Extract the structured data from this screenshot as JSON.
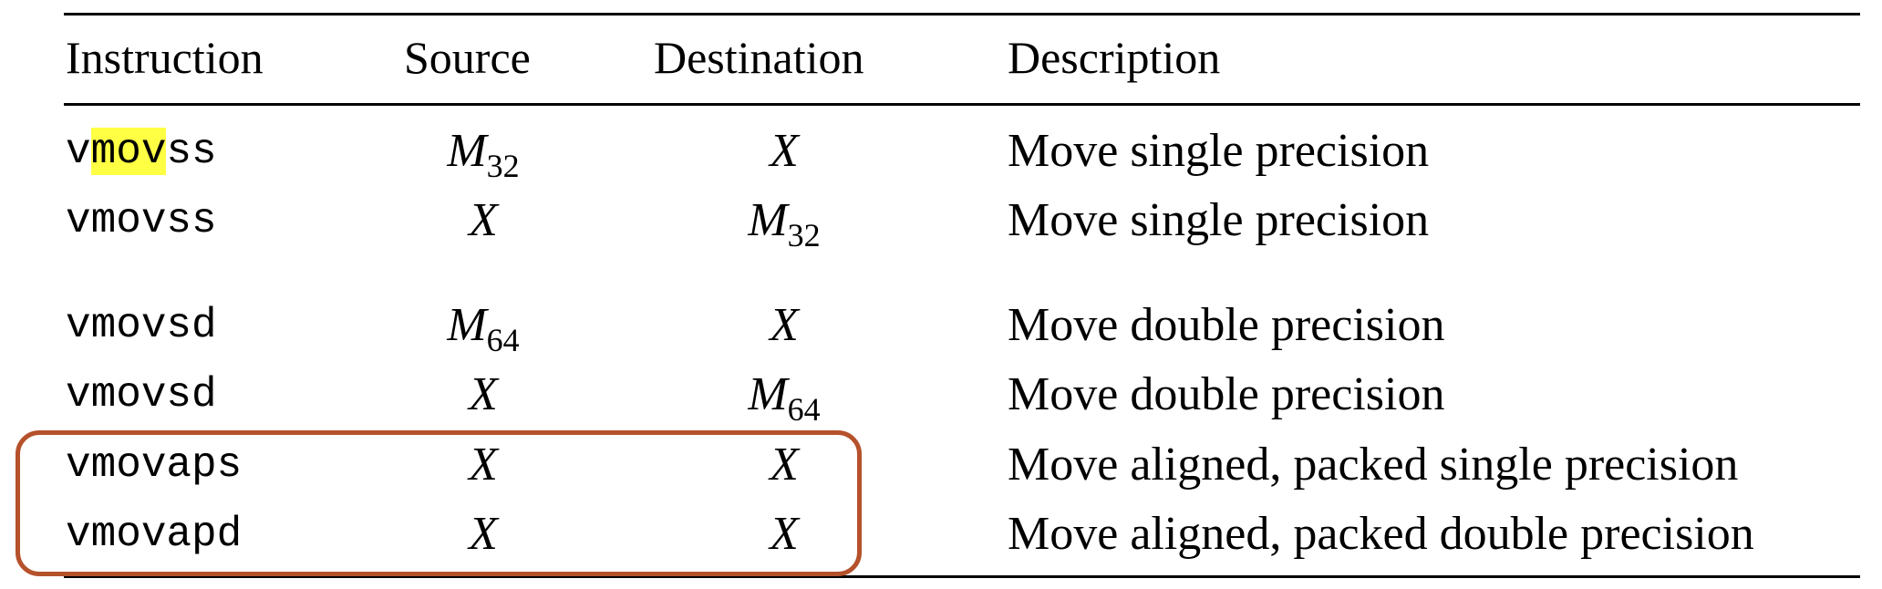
{
  "headers": {
    "instruction": "Instruction",
    "source": "Source",
    "destination": "Destination",
    "description": "Description"
  },
  "rows": [
    {
      "instr_pre": "v",
      "instr_hl": "mov",
      "instr_post": "ss",
      "src_base": "M",
      "src_sub": "32",
      "dst_base": "X",
      "dst_sub": "",
      "desc": "Move single precision"
    },
    {
      "instr": "vmovss",
      "src_base": "X",
      "src_sub": "",
      "dst_base": "M",
      "dst_sub": "32",
      "desc": "Move single precision"
    },
    {
      "instr": "vmovsd",
      "src_base": "M",
      "src_sub": "64",
      "dst_base": "X",
      "dst_sub": "",
      "desc": "Move double precision"
    },
    {
      "instr": "vmovsd",
      "src_base": "X",
      "src_sub": "",
      "dst_base": "M",
      "dst_sub": "64",
      "desc": "Move double precision"
    },
    {
      "instr": "vmovaps",
      "src_base": "X",
      "src_sub": "",
      "dst_base": "X",
      "dst_sub": "",
      "desc": "Move aligned, packed single precision"
    },
    {
      "instr": "vmovapd",
      "src_base": "X",
      "src_sub": "",
      "dst_base": "X",
      "dst_sub": "",
      "desc": "Move aligned, packed double precision"
    }
  ],
  "colors": {
    "highlight": "#ffff44",
    "callout_border": "#b5512b"
  }
}
